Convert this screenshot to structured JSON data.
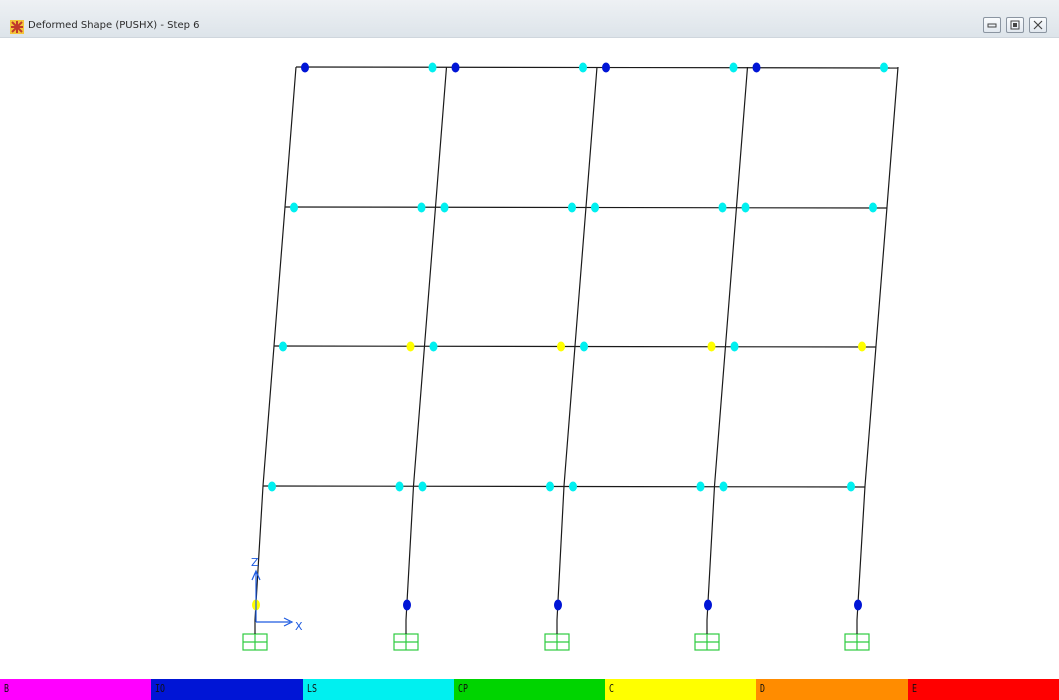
{
  "window": {
    "title": "Deformed Shape (PUSHX) - Step 6",
    "app_icon": "sap2000-icon",
    "buttons": [
      {
        "name": "minimize-button",
        "icon": "minimize-icon"
      },
      {
        "name": "maximize-button",
        "icon": "maximize-icon"
      },
      {
        "name": "close-button",
        "icon": "close-icon"
      }
    ]
  },
  "axes": {
    "z_label": "Z",
    "x_label": "X"
  },
  "model": {
    "stories": 4,
    "bays": 4,
    "line_color": "#1a1a1a",
    "support_color": "#2ecc40",
    "axis_color": "#1e5be0",
    "hinge_states": {
      "beams": [
        [
          "IO",
          "LS",
          "IO",
          "LS",
          "IO",
          "LS",
          "IO",
          "LS"
        ],
        [
          "LS",
          "LS",
          "LS",
          "LS",
          "LS",
          "LS",
          "LS",
          "LS"
        ],
        [
          "LS",
          "C",
          "LS",
          "C",
          "LS",
          "C",
          "LS",
          "C"
        ],
        [
          "LS",
          "LS",
          "LS",
          "LS",
          "LS",
          "LS",
          "LS",
          "LS"
        ]
      ],
      "column_bases": [
        "C",
        "IO",
        "IO",
        "IO",
        "IO"
      ]
    }
  },
  "legend": [
    {
      "label": "B",
      "color": "#ff00ff"
    },
    {
      "label": "IO",
      "color": "#0015d6"
    },
    {
      "label": "LS",
      "color": "#00f0f0"
    },
    {
      "label": "CP",
      "color": "#00d400"
    },
    {
      "label": "C",
      "color": "#ffff00"
    },
    {
      "label": "D",
      "color": "#ff8c00"
    },
    {
      "label": "E",
      "color": "#ff0000"
    }
  ]
}
